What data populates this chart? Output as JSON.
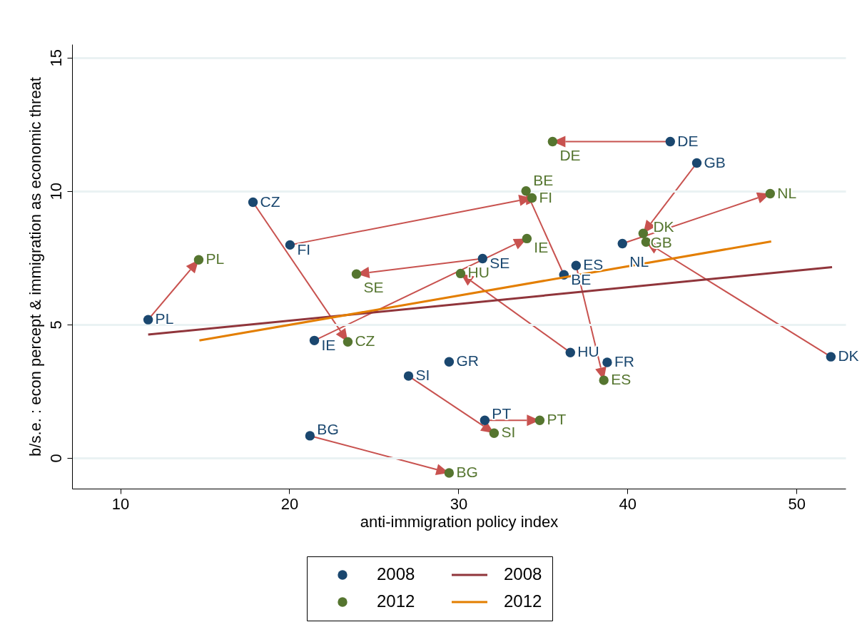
{
  "chart_data": {
    "type": "scatter",
    "xlabel": "anti-immigration policy index",
    "ylabel": "b/s.e. : econ percept & immigration as economic threat",
    "xlim": [
      7.15,
      52.9
    ],
    "ylim": [
      -1.15,
      15.5
    ],
    "xticks": [
      10,
      20,
      30,
      40,
      50
    ],
    "yticks": [
      0,
      5,
      10,
      15
    ],
    "grid": "y",
    "legend": "bottom",
    "series": [
      {
        "name": "2008",
        "color": "#1a476f",
        "x": [
          11.65,
          17.85,
          20.04,
          21.48,
          21.22,
          27.05,
          29.45,
          31.43,
          31.56,
          36.62,
          36.24,
          36.96,
          38.8,
          39.7,
          42.53,
          44.1,
          52.03
        ],
        "values": [
          5.18,
          9.58,
          7.98,
          4.4,
          0.83,
          3.07,
          3.6,
          7.47,
          1.41,
          3.95,
          6.86,
          7.21,
          3.58,
          8.03,
          11.85,
          11.05,
          3.79
        ],
        "value_labels": [
          "PL",
          "CZ",
          "FI",
          "IE",
          "BG",
          "SI",
          "GR",
          "SE",
          "PT",
          "HU",
          "BE",
          "ES",
          "FR",
          "NL",
          "DE",
          "GB",
          "DK"
        ]
      },
      {
        "name": "2012",
        "color": "#55752f",
        "x": [
          14.64,
          23.46,
          34.35,
          34.05,
          29.45,
          32.11,
          null,
          23.97,
          34.81,
          30.13,
          34.0,
          38.6,
          null,
          48.44,
          35.57,
          40.93,
          41.1
        ],
        "values": [
          7.42,
          4.35,
          9.74,
          8.22,
          -0.56,
          0.93,
          null,
          6.89,
          1.41,
          6.91,
          10.0,
          2.91,
          null,
          9.9,
          11.85,
          8.41,
          8.09
        ],
        "value_labels": [
          "PL",
          "CZ",
          "FI",
          "IE",
          "BG",
          "SI",
          null,
          "SE",
          "PT",
          "HU",
          "BE",
          "ES",
          null,
          "NL",
          "DE",
          "GB",
          "DK"
        ]
      },
      {
        "name": "2008",
        "type": "line",
        "color": "#90353b",
        "x": [
          11.65,
          52.1
        ],
        "values": [
          4.62,
          7.15
        ]
      },
      {
        "name": "2012",
        "type": "line",
        "color": "#e37e00",
        "x": [
          14.68,
          48.5
        ],
        "values": [
          4.4,
          8.11
        ]
      }
    ]
  }
}
